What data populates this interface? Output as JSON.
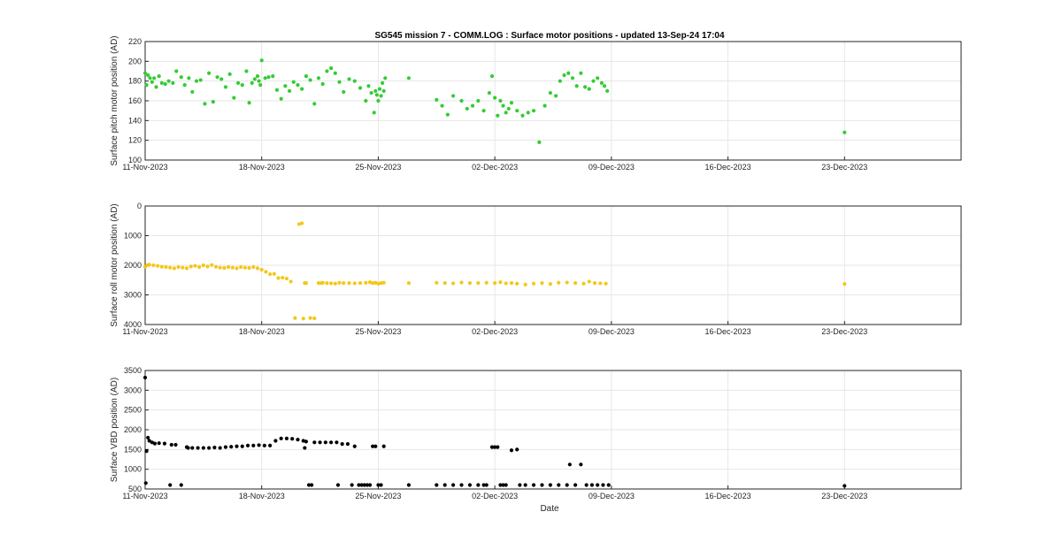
{
  "title": "SG545 mission 7  -  COMM.LOG : Surface motor positions  -  updated 13-Sep-24 17:04",
  "x_tick_labels": [
    "11-Nov-2023",
    "18-Nov-2023",
    "25-Nov-2023",
    "02-Dec-2023",
    "09-Dec-2023",
    "16-Dec-2023",
    "23-Dec-2023"
  ],
  "x_label": "Date",
  "chart_data": [
    {
      "type": "scatter",
      "ylabel": "Surface pitch motor position (AD)",
      "color": "#33cc33",
      "xlim": [
        "2023-11-11",
        "2023-12-30"
      ],
      "ylim": [
        100,
        220
      ],
      "yticks": [
        100,
        120,
        140,
        160,
        180,
        200,
        220
      ],
      "y_reversed": false,
      "grid": true,
      "x": [
        "2023-11-11 00:00",
        "2023-11-11 02:00",
        "2023-11-11 04:00",
        "2023-11-11 07:00",
        "2023-11-11 10:00",
        "2023-11-11 13:00",
        "2023-11-11 16:00",
        "2023-11-11 20:00",
        "2023-11-12 00:00",
        "2023-11-12 05:00",
        "2023-11-12 10:00",
        "2023-11-12 16:00",
        "2023-11-12 21:00",
        "2023-11-13 04:00",
        "2023-11-13 09:00",
        "2023-11-13 15:00",
        "2023-11-13 20:00",
        "2023-11-14 02:00",
        "2023-11-14 08:00",
        "2023-11-14 14:00",
        "2023-11-14 20:00",
        "2023-11-15 02:00",
        "2023-11-15 08:00",
        "2023-11-15 14:00",
        "2023-11-15 20:00",
        "2023-11-16 02:00",
        "2023-11-16 08:00",
        "2023-11-16 14:00",
        "2023-11-16 20:00",
        "2023-11-17 02:00",
        "2023-11-17 06:00",
        "2023-11-17 10:00",
        "2023-11-17 14:00",
        "2023-11-17 18:00",
        "2023-11-17 20:00",
        "2023-11-17 22:00",
        "2023-11-18 00:00",
        "2023-11-18 05:00",
        "2023-11-18 10:00",
        "2023-11-18 16:00",
        "2023-11-18 22:00",
        "2023-11-19 04:00",
        "2023-11-19 10:00",
        "2023-11-19 16:00",
        "2023-11-19 22:00",
        "2023-11-20 04:00",
        "2023-11-20 10:00",
        "2023-11-20 16:00",
        "2023-11-20 22:00",
        "2023-11-21 04:00",
        "2023-11-21 10:00",
        "2023-11-21 16:00",
        "2023-11-21 22:00",
        "2023-11-22 04:00",
        "2023-11-22 10:00",
        "2023-11-22 16:00",
        "2023-11-22 22:00",
        "2023-11-23 06:00",
        "2023-11-23 14:00",
        "2023-11-23 22:00",
        "2023-11-24 06:00",
        "2023-11-24 10:00",
        "2023-11-24 14:00",
        "2023-11-24 18:00",
        "2023-11-24 20:00",
        "2023-11-24 22:00",
        "2023-11-25 00:00",
        "2023-11-25 02:00",
        "2023-11-25 04:00",
        "2023-11-25 06:00",
        "2023-11-25 08:00",
        "2023-11-25 10:00",
        "2023-11-26 20:00",
        "2023-11-28 12:00",
        "2023-11-28 20:00",
        "2023-11-29 04:00",
        "2023-11-29 12:00",
        "2023-11-30 00:00",
        "2023-11-30 08:00",
        "2023-11-30 16:00",
        "2023-12-01 00:00",
        "2023-12-01 08:00",
        "2023-12-01 16:00",
        "2023-12-01 20:00",
        "2023-12-02 00:00",
        "2023-12-02 04:00",
        "2023-12-02 08:00",
        "2023-12-02 12:00",
        "2023-12-02 16:00",
        "2023-12-02 20:00",
        "2023-12-03 00:00",
        "2023-12-03 08:00",
        "2023-12-03 16:00",
        "2023-12-04 00:00",
        "2023-12-04 08:00",
        "2023-12-04 16:00",
        "2023-12-05 00:00",
        "2023-12-05 08:00",
        "2023-12-05 16:00",
        "2023-12-05 22:00",
        "2023-12-06 04:00",
        "2023-12-06 10:00",
        "2023-12-06 16:00",
        "2023-12-06 22:00",
        "2023-12-07 04:00",
        "2023-12-07 10:00",
        "2023-12-07 16:00",
        "2023-12-07 22:00",
        "2023-12-08 04:00",
        "2023-12-08 10:00",
        "2023-12-08 14:00",
        "2023-12-08 18:00",
        "2023-12-23 00:00"
      ],
      "y": [
        188,
        176,
        186,
        183,
        179,
        183,
        174,
        185,
        178,
        177,
        180,
        178,
        190,
        184,
        176,
        183,
        169,
        180,
        181,
        157,
        188,
        159,
        184,
        182,
        174,
        187,
        163,
        178,
        176,
        190,
        158,
        178,
        182,
        185,
        180,
        176,
        201,
        183,
        184,
        185,
        171,
        162,
        175,
        170,
        179,
        176,
        172,
        185,
        181,
        157,
        183,
        177,
        190,
        193,
        188,
        179,
        169,
        182,
        180,
        173,
        160,
        175,
        168,
        148,
        170,
        166,
        160,
        172,
        165,
        178,
        170,
        183,
        183,
        161,
        155,
        146,
        165,
        160,
        152,
        155,
        160,
        150,
        168,
        185,
        163,
        145,
        160,
        155,
        148,
        152,
        158,
        150,
        145,
        148,
        150,
        118,
        155,
        168,
        165,
        180,
        186,
        188,
        183,
        175,
        188,
        174,
        172,
        180,
        183,
        178,
        175,
        170,
        128
      ],
      "series": []
    },
    {
      "type": "scatter",
      "ylabel": "Surface roll motor position (AD)",
      "color": "#f2c818",
      "xlim": [
        "2023-11-11",
        "2023-12-30"
      ],
      "ylim": [
        0,
        4000
      ],
      "yticks": [
        0,
        1000,
        2000,
        3000,
        4000
      ],
      "y_reversed": true,
      "grid": true,
      "x": [
        "2023-11-11 00:00",
        "2023-11-11 03:00",
        "2023-11-11 06:00",
        "2023-11-11 12:00",
        "2023-11-11 18:00",
        "2023-11-12 00:00",
        "2023-11-12 06:00",
        "2023-11-12 12:00",
        "2023-11-12 18:00",
        "2023-11-13 00:00",
        "2023-11-13 06:00",
        "2023-11-13 12:00",
        "2023-11-13 18:00",
        "2023-11-14 00:00",
        "2023-11-14 06:00",
        "2023-11-14 12:00",
        "2023-11-14 18:00",
        "2023-11-15 00:00",
        "2023-11-15 06:00",
        "2023-11-15 12:00",
        "2023-11-15 18:00",
        "2023-11-16 00:00",
        "2023-11-16 06:00",
        "2023-11-16 12:00",
        "2023-11-16 18:00",
        "2023-11-17 00:00",
        "2023-11-17 06:00",
        "2023-11-17 12:00",
        "2023-11-17 18:00",
        "2023-11-18 00:00",
        "2023-11-18 06:00",
        "2023-11-18 12:00",
        "2023-11-18 18:00",
        "2023-11-19 00:00",
        "2023-11-19 06:00",
        "2023-11-19 12:00",
        "2023-11-19 18:00",
        "2023-11-20 00:00",
        "2023-11-20 06:00",
        "2023-11-20 10:00",
        "2023-11-20 12:00",
        "2023-11-20 14:00",
        "2023-11-20 16:00",
        "2023-11-20 22:00",
        "2023-11-21 04:00",
        "2023-11-21 10:00",
        "2023-11-21 14:00",
        "2023-11-21 16:00",
        "2023-11-21 22:00",
        "2023-11-22 04:00",
        "2023-11-22 10:00",
        "2023-11-22 16:00",
        "2023-11-22 22:00",
        "2023-11-23 06:00",
        "2023-11-23 14:00",
        "2023-11-23 22:00",
        "2023-11-24 06:00",
        "2023-11-24 12:00",
        "2023-11-24 16:00",
        "2023-11-24 20:00",
        "2023-11-25 00:00",
        "2023-11-25 04:00",
        "2023-11-25 08:00",
        "2023-11-26 20:00",
        "2023-11-28 12:00",
        "2023-11-29 00:00",
        "2023-11-29 12:00",
        "2023-11-30 00:00",
        "2023-11-30 12:00",
        "2023-12-01 00:00",
        "2023-12-01 12:00",
        "2023-12-02 00:00",
        "2023-12-02 08:00",
        "2023-12-02 16:00",
        "2023-12-03 00:00",
        "2023-12-03 08:00",
        "2023-12-03 20:00",
        "2023-12-04 08:00",
        "2023-12-04 20:00",
        "2023-12-05 08:00",
        "2023-12-05 20:00",
        "2023-12-06 08:00",
        "2023-12-06 20:00",
        "2023-12-07 08:00",
        "2023-12-07 16:00",
        "2023-12-08 00:00",
        "2023-12-08 08:00",
        "2023-12-08 16:00",
        "2023-12-23 00:00"
      ],
      "y": [
        2050,
        2000,
        1980,
        2000,
        2020,
        2050,
        2060,
        2080,
        2100,
        2060,
        2080,
        2100,
        2040,
        2020,
        2060,
        2000,
        2040,
        1990,
        2050,
        2080,
        2090,
        2060,
        2080,
        2100,
        2060,
        2080,
        2090,
        2060,
        2100,
        2150,
        2220,
        2300,
        2290,
        2430,
        2420,
        2450,
        2550,
        3780,
        610,
        580,
        3800,
        2600,
        2600,
        3780,
        3790,
        2600,
        2600,
        2590,
        2600,
        2610,
        2620,
        2590,
        2600,
        2600,
        2610,
        2600,
        2590,
        2570,
        2600,
        2590,
        2620,
        2600,
        2590,
        2600,
        2590,
        2600,
        2610,
        2580,
        2600,
        2600,
        2590,
        2600,
        2570,
        2610,
        2600,
        2620,
        2650,
        2620,
        2600,
        2630,
        2590,
        2580,
        2600,
        2620,
        2550,
        2600,
        2610,
        2620,
        2630
      ],
      "series": []
    },
    {
      "type": "scatter",
      "ylabel": "Surface VBD position (AD)",
      "color": "#000000",
      "xlim": [
        "2023-11-11",
        "2023-12-30"
      ],
      "ylim": [
        500,
        3500
      ],
      "yticks": [
        500,
        1000,
        1500,
        2000,
        2500,
        3000,
        3500
      ],
      "y_reversed": false,
      "grid": true,
      "x": [
        "2023-11-11 00:00",
        "2023-11-11 01:00",
        "2023-11-11 02:00",
        "2023-11-11 04:00",
        "2023-11-11 06:00",
        "2023-11-11 10:00",
        "2023-11-11 14:00",
        "2023-11-11 20:00",
        "2023-11-12 04:00",
        "2023-11-12 12:00",
        "2023-11-12 14:00",
        "2023-11-12 20:00",
        "2023-11-13 04:00",
        "2023-11-13 12:00",
        "2023-11-13 14:00",
        "2023-11-13 20:00",
        "2023-11-14 04:00",
        "2023-11-14 12:00",
        "2023-11-14 20:00",
        "2023-11-15 04:00",
        "2023-11-15 12:00",
        "2023-11-15 20:00",
        "2023-11-16 04:00",
        "2023-11-16 12:00",
        "2023-11-16 20:00",
        "2023-11-17 04:00",
        "2023-11-17 12:00",
        "2023-11-17 20:00",
        "2023-11-18 04:00",
        "2023-11-18 12:00",
        "2023-11-18 20:00",
        "2023-11-19 04:00",
        "2023-11-19 12:00",
        "2023-11-19 20:00",
        "2023-11-20 04:00",
        "2023-11-20 12:00",
        "2023-11-20 14:00",
        "2023-11-20 16:00",
        "2023-11-20 20:00",
        "2023-11-21 00:00",
        "2023-11-21 04:00",
        "2023-11-21 12:00",
        "2023-11-21 20:00",
        "2023-11-22 04:00",
        "2023-11-22 12:00",
        "2023-11-22 14:00",
        "2023-11-22 20:00",
        "2023-11-23 04:00",
        "2023-11-23 10:00",
        "2023-11-23 14:00",
        "2023-11-23 20:00",
        "2023-11-24 00:00",
        "2023-11-24 04:00",
        "2023-11-24 08:00",
        "2023-11-24 12:00",
        "2023-11-24 16:00",
        "2023-11-24 20:00",
        "2023-11-25 00:00",
        "2023-11-25 04:00",
        "2023-11-25 08:00",
        "2023-11-26 20:00",
        "2023-11-28 12:00",
        "2023-11-29 00:00",
        "2023-11-29 12:00",
        "2023-11-30 00:00",
        "2023-11-30 12:00",
        "2023-12-01 00:00",
        "2023-12-01 08:00",
        "2023-12-01 12:00",
        "2023-12-01 20:00",
        "2023-12-02 00:00",
        "2023-12-02 04:00",
        "2023-12-02 08:00",
        "2023-12-02 12:00",
        "2023-12-02 16:00",
        "2023-12-03 00:00",
        "2023-12-03 08:00",
        "2023-12-03 12:00",
        "2023-12-03 20:00",
        "2023-12-04 08:00",
        "2023-12-04 20:00",
        "2023-12-05 08:00",
        "2023-12-05 20:00",
        "2023-12-06 08:00",
        "2023-12-06 12:00",
        "2023-12-06 20:00",
        "2023-12-07 04:00",
        "2023-12-07 12:00",
        "2023-12-07 20:00",
        "2023-12-08 04:00",
        "2023-12-08 12:00",
        "2023-12-08 20:00",
        "2023-12-23 00:00"
      ],
      "y": [
        3320,
        650,
        1460,
        1800,
        1720,
        1680,
        1650,
        1660,
        1650,
        600,
        1620,
        1620,
        600,
        1560,
        1540,
        1540,
        1540,
        1540,
        1540,
        1550,
        1540,
        1560,
        1570,
        1580,
        1580,
        1600,
        1600,
        1610,
        1600,
        1600,
        1720,
        1780,
        1780,
        1770,
        1750,
        1720,
        1540,
        1700,
        600,
        600,
        1680,
        1680,
        1680,
        1680,
        1680,
        600,
        1640,
        1640,
        600,
        1580,
        600,
        600,
        600,
        600,
        600,
        1580,
        1580,
        600,
        600,
        1580,
        600,
        600,
        600,
        600,
        600,
        600,
        600,
        600,
        600,
        1560,
        1560,
        1560,
        600,
        600,
        600,
        1480,
        1500,
        600,
        600,
        600,
        600,
        600,
        600,
        600,
        1120,
        600,
        1120,
        600,
        600,
        600,
        600,
        600,
        580
      ],
      "series": []
    }
  ]
}
